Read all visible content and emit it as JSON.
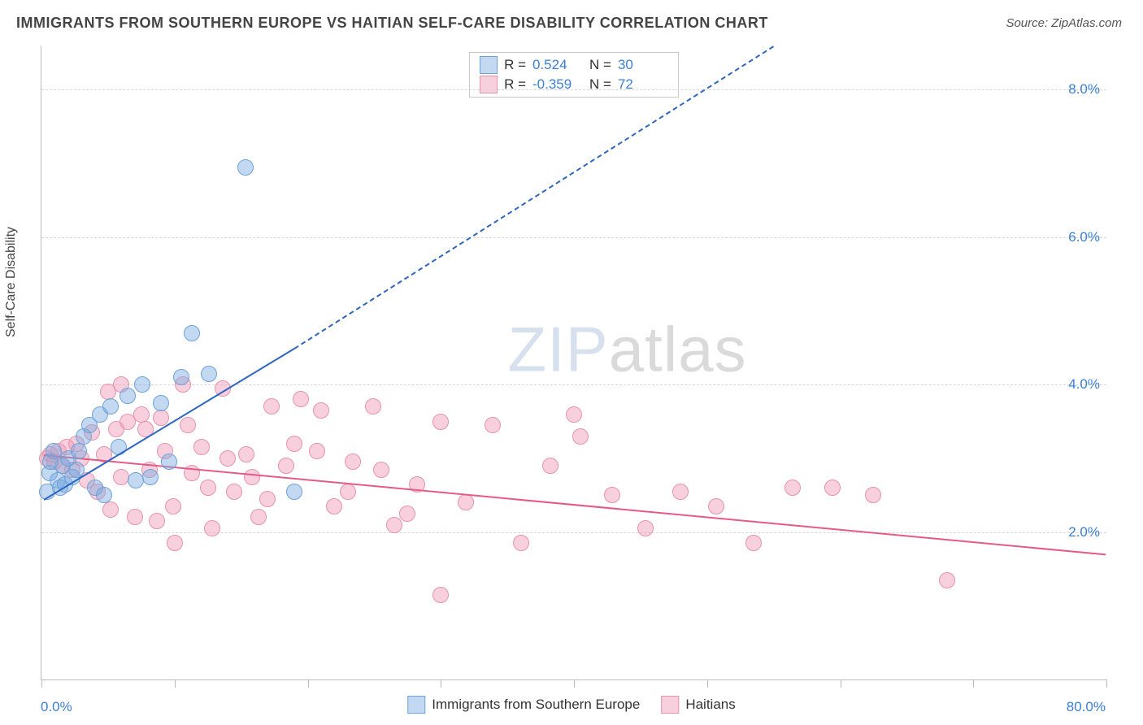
{
  "title": "IMMIGRANTS FROM SOUTHERN EUROPE VS HAITIAN SELF-CARE DISABILITY CORRELATION CHART",
  "source": "Source: ZipAtlas.com",
  "ylabel": "Self-Care Disability",
  "watermark_a": "ZIP",
  "watermark_b": "atlas",
  "chart": {
    "type": "scatter",
    "xlim": [
      0,
      80
    ],
    "ylim": [
      0,
      8.6
    ],
    "x_min_label": "0.0%",
    "x_max_label": "80.0%",
    "y_ticks": [
      2.0,
      4.0,
      6.0,
      8.0
    ],
    "y_tick_labels": [
      "2.0%",
      "4.0%",
      "6.0%",
      "8.0%"
    ],
    "x_tick_positions": [
      0,
      10,
      20,
      30,
      40,
      50,
      60,
      70,
      80
    ],
    "background_color": "#ffffff",
    "grid_color": "#d6d6d6",
    "axis_color": "#bbbbbb",
    "point_radius": 9,
    "tick_label_color": "#3b7fd6",
    "series": [
      {
        "name": "Immigrants from Southern Europe",
        "fill": "rgba(120,170,225,0.45)",
        "stroke": "#6fa2d9",
        "line_color": "#2e66c4",
        "r_label": "R =",
        "r_value": "0.524",
        "n_label": "N =",
        "n_value": "30",
        "trend_solid": {
          "x1": 0.2,
          "y1": 2.45,
          "x2": 19,
          "y2": 4.5
        },
        "trend_dashed": {
          "x1": 19,
          "y1": 4.5,
          "x2": 55,
          "y2": 8.6
        },
        "points": [
          [
            0.4,
            2.55
          ],
          [
            0.6,
            2.8
          ],
          [
            0.7,
            2.95
          ],
          [
            0.9,
            3.1
          ],
          [
            1.2,
            2.7
          ],
          [
            1.4,
            2.6
          ],
          [
            1.6,
            2.9
          ],
          [
            1.8,
            2.65
          ],
          [
            2.0,
            3.0
          ],
          [
            2.3,
            2.75
          ],
          [
            2.6,
            2.85
          ],
          [
            2.8,
            3.1
          ],
          [
            3.2,
            3.3
          ],
          [
            3.6,
            3.45
          ],
          [
            4.0,
            2.6
          ],
          [
            4.4,
            3.6
          ],
          [
            4.7,
            2.5
          ],
          [
            5.2,
            3.7
          ],
          [
            5.8,
            3.15
          ],
          [
            6.5,
            3.85
          ],
          [
            7.1,
            2.7
          ],
          [
            7.6,
            4.0
          ],
          [
            8.2,
            2.75
          ],
          [
            9.0,
            3.75
          ],
          [
            9.6,
            2.95
          ],
          [
            10.5,
            4.1
          ],
          [
            11.3,
            4.7
          ],
          [
            12.6,
            4.15
          ],
          [
            15.3,
            6.95
          ],
          [
            19.0,
            2.55
          ]
        ]
      },
      {
        "name": "Haitians",
        "fill": "rgba(240,150,180,0.45)",
        "stroke": "#e793ad",
        "line_color": "#e45a8a",
        "r_label": "R =",
        "r_value": "-0.359",
        "n_label": "N =",
        "n_value": "72",
        "trend_solid": {
          "x1": 0.2,
          "y1": 3.05,
          "x2": 80,
          "y2": 1.7
        },
        "points": [
          [
            0.4,
            3.0
          ],
          [
            0.7,
            3.05
          ],
          [
            1.0,
            2.95
          ],
          [
            1.3,
            3.1
          ],
          [
            1.6,
            2.9
          ],
          [
            1.9,
            3.15
          ],
          [
            2.3,
            2.85
          ],
          [
            2.6,
            3.2
          ],
          [
            3.0,
            3.0
          ],
          [
            3.4,
            2.7
          ],
          [
            3.8,
            3.35
          ],
          [
            4.2,
            2.55
          ],
          [
            4.7,
            3.05
          ],
          [
            5.2,
            2.3
          ],
          [
            5.6,
            3.4
          ],
          [
            6.0,
            2.75
          ],
          [
            6.5,
            3.5
          ],
          [
            7.0,
            2.2
          ],
          [
            7.5,
            3.6
          ],
          [
            8.1,
            2.85
          ],
          [
            8.7,
            2.15
          ],
          [
            9.3,
            3.1
          ],
          [
            9.9,
            2.35
          ],
          [
            10.6,
            4.0
          ],
          [
            11.3,
            2.8
          ],
          [
            12.0,
            3.15
          ],
          [
            12.8,
            2.05
          ],
          [
            13.6,
            3.95
          ],
          [
            14.5,
            2.55
          ],
          [
            15.4,
            3.05
          ],
          [
            16.3,
            2.2
          ],
          [
            17.3,
            3.7
          ],
          [
            18.4,
            2.9
          ],
          [
            19.5,
            3.8
          ],
          [
            20.7,
            3.1
          ],
          [
            22.0,
            2.35
          ],
          [
            23.4,
            2.95
          ],
          [
            24.9,
            3.7
          ],
          [
            26.5,
            2.1
          ],
          [
            28.2,
            2.65
          ],
          [
            30.0,
            3.5
          ],
          [
            31.9,
            2.4
          ],
          [
            33.9,
            3.45
          ],
          [
            36.0,
            1.85
          ],
          [
            38.2,
            2.9
          ],
          [
            40.5,
            3.3
          ],
          [
            42.9,
            2.5
          ],
          [
            45.4,
            2.05
          ],
          [
            48.0,
            2.55
          ],
          [
            50.7,
            2.35
          ],
          [
            53.5,
            1.85
          ],
          [
            56.4,
            2.6
          ],
          [
            59.4,
            2.6
          ],
          [
            62.5,
            2.5
          ],
          [
            68.0,
            1.35
          ],
          [
            30.0,
            1.15
          ],
          [
            10.0,
            1.85
          ],
          [
            6.0,
            4.0
          ],
          [
            5.0,
            3.9
          ],
          [
            7.8,
            3.4
          ],
          [
            9.0,
            3.55
          ],
          [
            11.0,
            3.45
          ],
          [
            12.5,
            2.6
          ],
          [
            14.0,
            3.0
          ],
          [
            15.8,
            2.75
          ],
          [
            17.0,
            2.45
          ],
          [
            19.0,
            3.2
          ],
          [
            21.0,
            3.65
          ],
          [
            23.0,
            2.55
          ],
          [
            25.5,
            2.85
          ],
          [
            27.5,
            2.25
          ],
          [
            40.0,
            3.6
          ]
        ]
      }
    ]
  }
}
